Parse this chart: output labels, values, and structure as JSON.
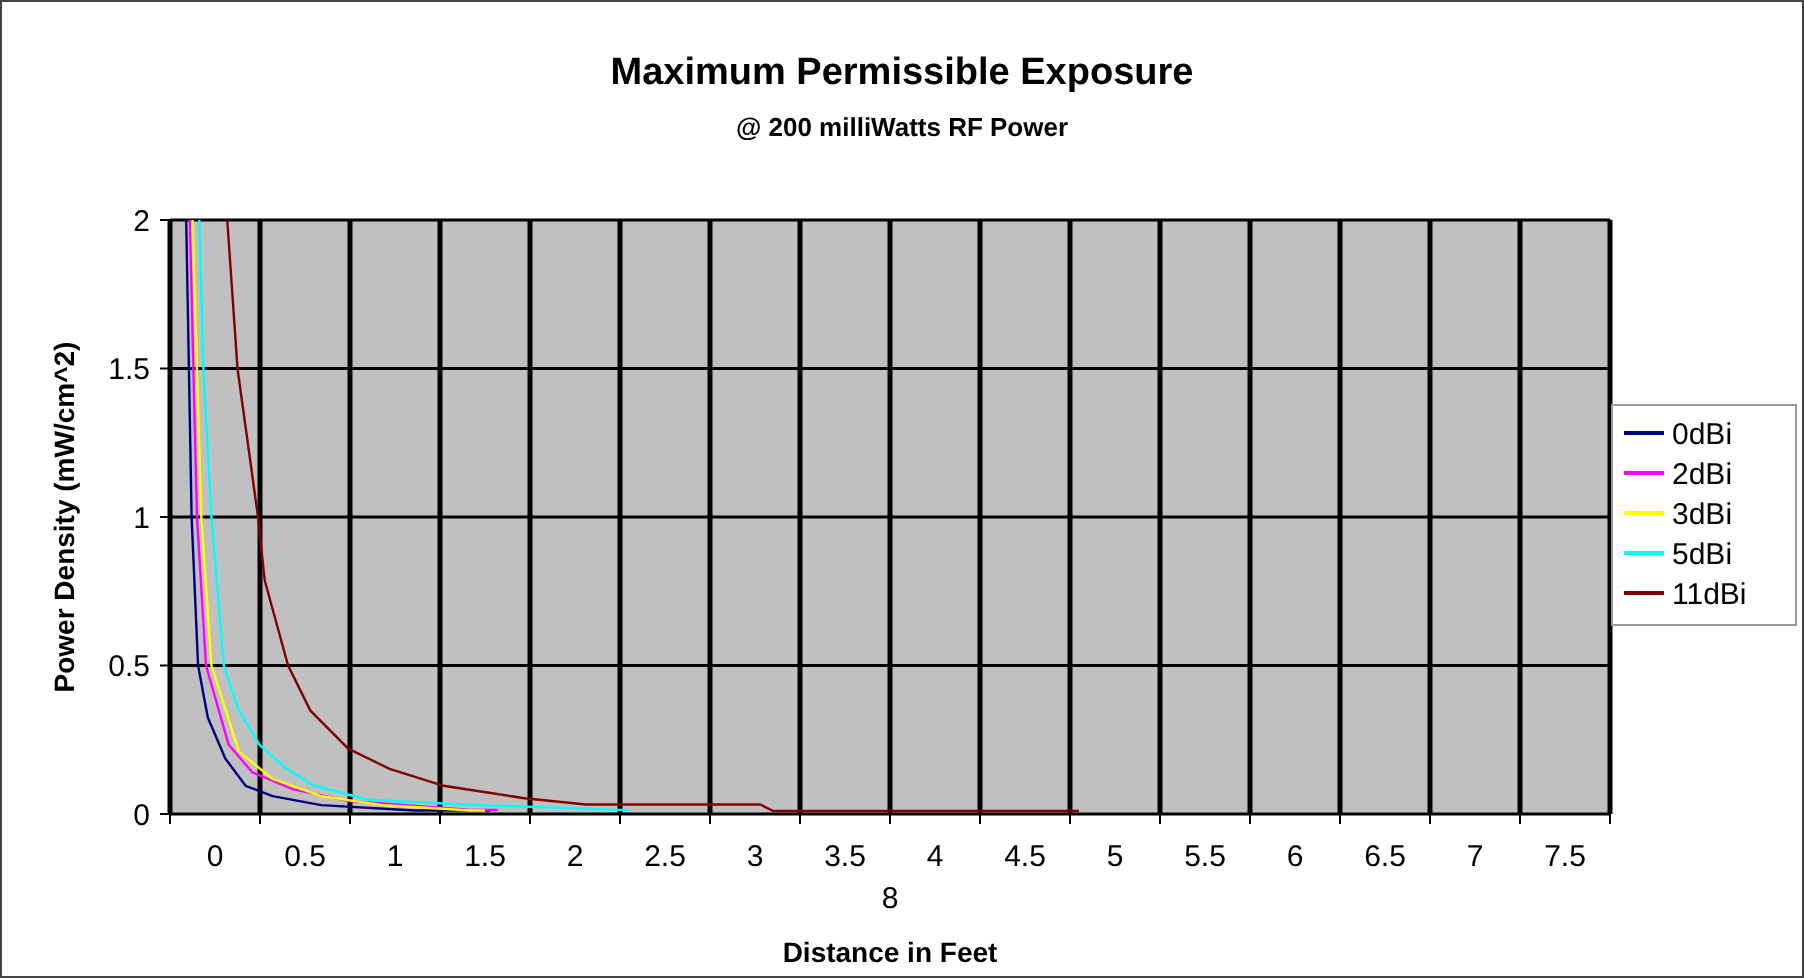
{
  "chart_data": {
    "type": "line",
    "title": "Maximum Permissible Exposure",
    "subtitle": "@ 200 milliWatts RF Power",
    "xlabel": "Distance in Feet",
    "ylabel": "Power Density (mW/cm^2)",
    "annotations": [
      "8"
    ],
    "xlim": [
      -0.25,
      7.75
    ],
    "xticks": [
      {
        "value": -0.25,
        "label": null
      },
      0,
      {
        "value": 0.25,
        "label": null
      },
      0.5,
      {
        "value": 0.75,
        "label": null
      },
      1,
      {
        "value": 1.25,
        "label": null
      },
      1.5,
      {
        "value": 1.75,
        "label": null
      },
      2,
      {
        "value": 2.25,
        "label": null
      },
      2.5,
      {
        "value": 2.75,
        "label": null
      },
      3,
      {
        "value": 3.25,
        "label": null
      },
      3.5,
      {
        "value": 3.75,
        "label": null
      },
      4,
      {
        "value": 4.25,
        "label": null
      },
      4.5,
      {
        "value": 4.75,
        "label": null
      },
      5,
      {
        "value": 5.25,
        "label": null
      },
      5.5,
      {
        "value": 5.75,
        "label": null
      },
      6,
      {
        "value": 6.25,
        "label": null
      },
      6.5,
      {
        "value": 6.75,
        "label": null
      },
      7,
      {
        "value": 7.25,
        "label": null
      },
      7.5,
      {
        "value": 7.75,
        "label": null
      }
    ],
    "ylim": [
      0,
      2
    ],
    "yticks": [
      0,
      0.5,
      1,
      1.5,
      2
    ],
    "grid": true,
    "legend": "right",
    "marker": "none",
    "line_style": "solid",
    "series": [
      {
        "name": "0dBi",
        "color": "#000080",
        "x": [
          -0.16,
          -0.13,
          -0.094,
          -0.04,
          0.057,
          0.17,
          0.32,
          0.59,
          1.11,
          1.53
        ],
        "values": [
          2,
          1,
          0.5,
          0.325,
          0.187,
          0.095,
          0.06,
          0.03,
          0.012,
          0.012
        ]
      },
      {
        "name": "2dBi",
        "color": "#ff00ff",
        "x": [
          -0.14,
          -0.1,
          -0.05,
          0.076,
          0.208,
          0.435,
          0.74,
          1.42,
          1.57
        ],
        "values": [
          2,
          1,
          0.5,
          0.233,
          0.14,
          0.083,
          0.044,
          0.014,
          0.014
        ]
      },
      {
        "name": "3dBi",
        "color": "#ffff00",
        "x": [
          -0.125,
          -0.076,
          -0.02,
          0.133,
          0.32,
          0.59,
          0.93,
          1.42,
          1.5
        ],
        "values": [
          2,
          1,
          0.5,
          0.21,
          0.118,
          0.06,
          0.03,
          0.012,
          0.012
        ]
      },
      {
        "name": "5dBi",
        "color": "#00ffff",
        "x": [
          -0.087,
          -0.065,
          -0.02,
          0.049,
          0.133,
          0.247,
          0.398,
          0.55,
          0.85,
          1.38,
          2.25,
          2.3
        ],
        "values": [
          2,
          1.5,
          1,
          0.5,
          0.348,
          0.233,
          0.152,
          0.095,
          0.048,
          0.032,
          0.014,
          0.014
        ]
      },
      {
        "name": "11dBi",
        "color": "#800000",
        "x": [
          0.068,
          0.125,
          0.239,
          0.276,
          0.406,
          0.53,
          0.74,
          0.97,
          1.27,
          1.72,
          2.06,
          3.03,
          3.1,
          4.8
        ],
        "values": [
          2,
          1.5,
          1,
          0.787,
          0.5,
          0.348,
          0.22,
          0.152,
          0.095,
          0.053,
          0.032,
          0.032,
          0.01,
          0.01
        ]
      }
    ]
  }
}
